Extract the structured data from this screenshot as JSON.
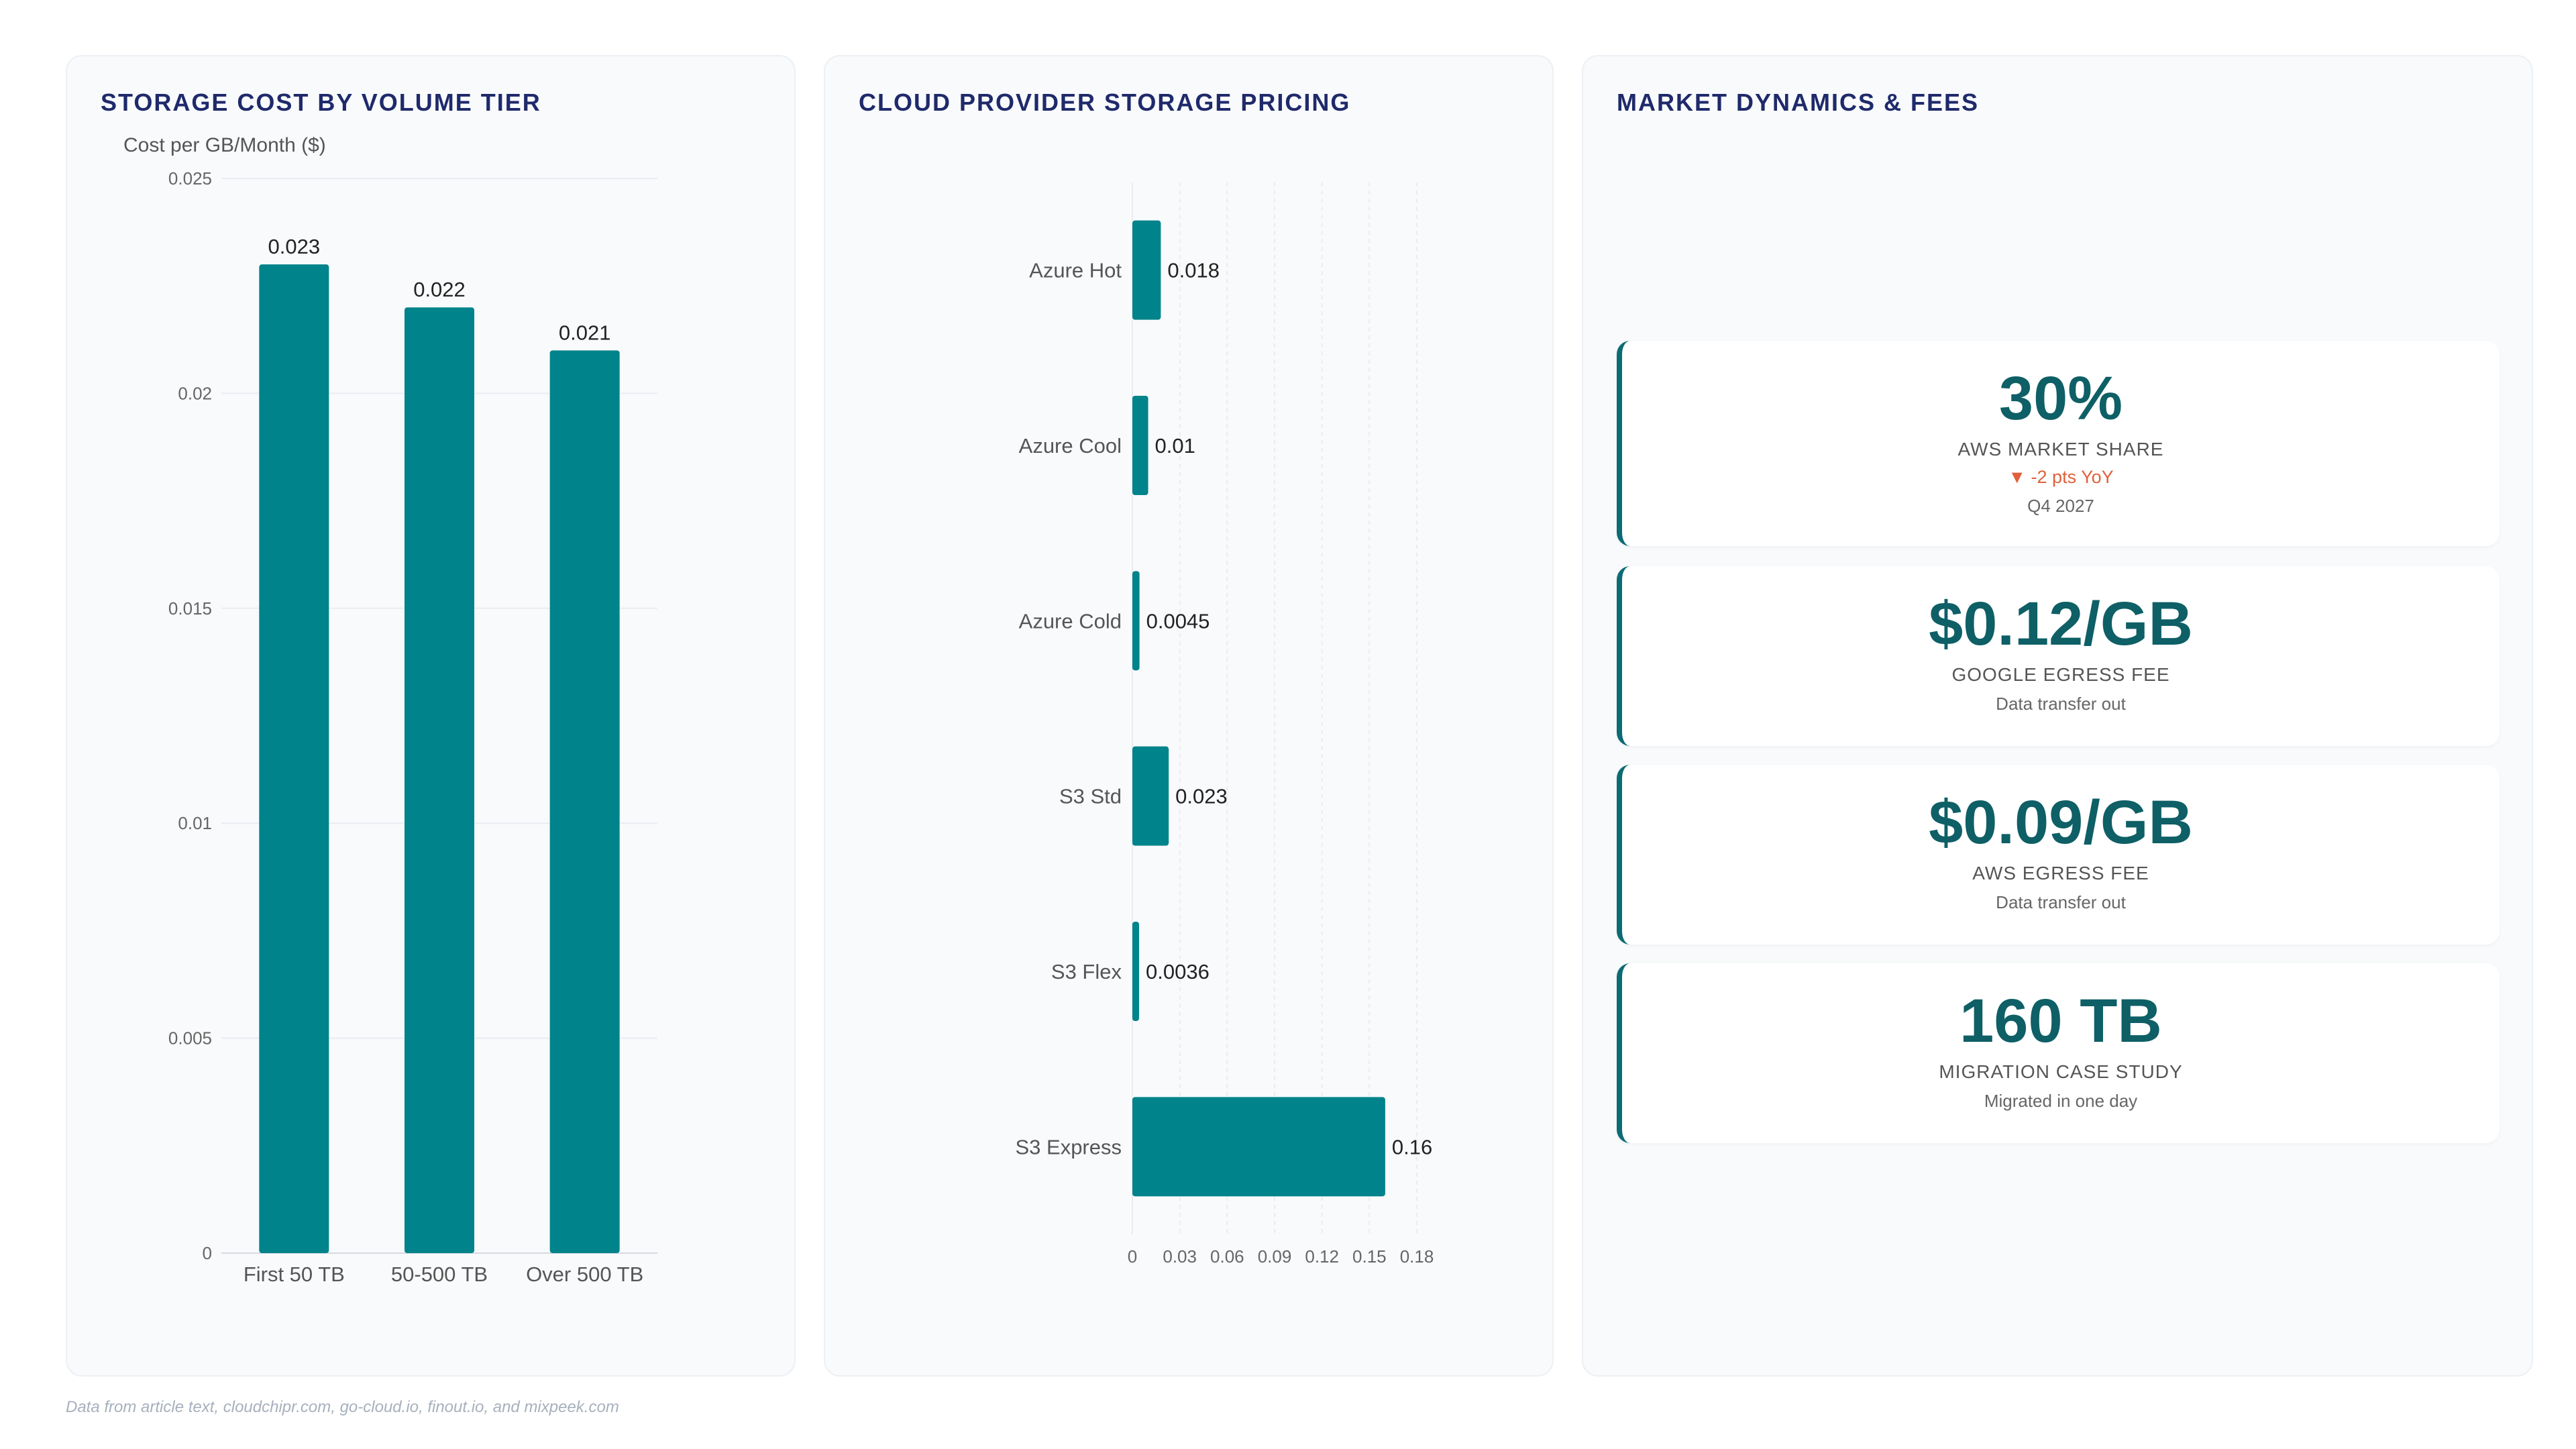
{
  "panels": {
    "tier": {
      "title": "STORAGE COST BY VOLUME TIER"
    },
    "provider": {
      "title": "CLOUD PROVIDER STORAGE PRICING"
    },
    "market": {
      "title": "MARKET DYNAMICS & FEES"
    }
  },
  "chart_data": [
    {
      "type": "bar",
      "title": "STORAGE COST BY VOLUME TIER",
      "ylabel": "Cost per GB/Month ($)",
      "categories": [
        "First 50 TB",
        "50-500 TB",
        "Over 500 TB"
      ],
      "values": [
        0.023,
        0.022,
        0.021
      ],
      "value_labels": [
        "0.023",
        "0.022",
        "0.021"
      ],
      "ylim": [
        0,
        0.025
      ],
      "yticks": [
        0,
        0.005,
        0.01,
        0.015,
        0.02,
        0.025
      ],
      "ytick_labels": [
        "0",
        "0.005",
        "0.01",
        "0.015",
        "0.02",
        "0.025"
      ],
      "orientation": "vertical",
      "color": "#00838a",
      "grid": true
    },
    {
      "type": "bar",
      "title": "CLOUD PROVIDER STORAGE PRICING",
      "categories": [
        "Azure Hot",
        "Azure Cool",
        "Azure Cold",
        "S3 Std",
        "S3 Flex",
        "S3 Express"
      ],
      "values": [
        0.018,
        0.01,
        0.0045,
        0.023,
        0.0036,
        0.16
      ],
      "value_labels": [
        "0.018",
        "0.01",
        "0.0045",
        "0.023",
        "0.0036",
        "0.16"
      ],
      "xlim": [
        0,
        0.18
      ],
      "xticks": [
        0,
        0.03,
        0.06,
        0.09,
        0.12,
        0.15,
        0.18
      ],
      "xtick_labels": [
        "0",
        "0.03",
        "0.06",
        "0.09",
        "0.12",
        "0.15",
        "0.18"
      ],
      "orientation": "horizontal",
      "color": "#00838a",
      "grid": true
    }
  ],
  "kpis": [
    {
      "value": "30%",
      "label": "AWS MARKET SHARE",
      "delta": "▼ -2 pts YoY",
      "sub": "Q4 2027"
    },
    {
      "value": "$0.12/GB",
      "label": "GOOGLE EGRESS FEE",
      "sub": "Data transfer out"
    },
    {
      "value": "$0.09/GB",
      "label": "AWS EGRESS FEE",
      "sub": "Data transfer out"
    },
    {
      "value": "160 TB",
      "label": "MIGRATION CASE STUDY",
      "sub": "Migrated in one day"
    }
  ],
  "footer": "Data from article text, cloudchipr.com, go-cloud.io, finout.io, and mixpeek.com"
}
